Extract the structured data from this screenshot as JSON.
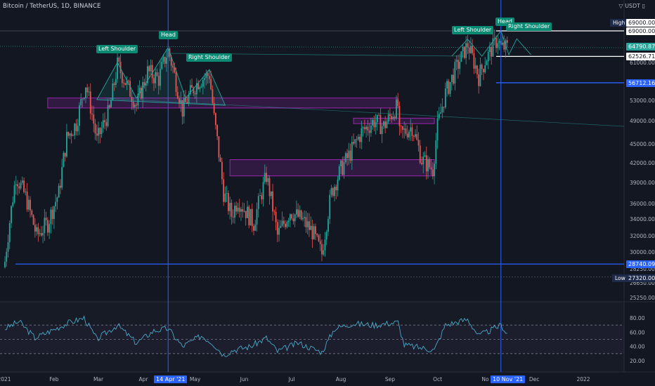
{
  "header": {
    "title": "Bitcoin / TetherUS, 1D, BINANCE",
    "currency": "USDT"
  },
  "price_axis": {
    "ticks": [
      "69000.00",
      "61000.00",
      "53000.00",
      "49000.00",
      "45000.00",
      "42000.00",
      "39000.00",
      "36000.00",
      "34000.00",
      "32000.00",
      "30000.00",
      "28250.00",
      "26650.00",
      "25250.00"
    ],
    "tick_values": [
      69000,
      61000,
      53000,
      49000,
      45000,
      42000,
      39000,
      36000,
      34000,
      32000,
      30000,
      28250,
      26650,
      25250
    ],
    "tags": {
      "high_label": "High",
      "high_value": "69000.00",
      "high_line": "69000.00",
      "last": "64790.87",
      "prev_close": "62526.71",
      "blue_level": "56712.16",
      "support": "28740.09",
      "low_label": "Low",
      "low_value": "27320.00"
    },
    "colors": {
      "last": "#26a69a",
      "blue": "#2962ff",
      "white": "#ffffff",
      "low": "#1e2a4a"
    }
  },
  "rsi_axis": {
    "ticks": [
      "80.00",
      "60.00",
      "40.00",
      "20.00"
    ],
    "tick_values": [
      80,
      60,
      40,
      20
    ]
  },
  "time_axis": {
    "ticks": [
      "2021",
      "Feb",
      "Mar",
      "Apr",
      "May",
      "Jun",
      "Jul",
      "Aug",
      "Sep",
      "Oct",
      "No",
      "Dec",
      "2022"
    ],
    "dates": [
      "2021-01-01",
      "2021-02-01",
      "2021-03-01",
      "2021-04-01",
      "2021-05-01",
      "2021-06-01",
      "2021-07-01",
      "2021-08-01",
      "2021-09-01",
      "2021-10-01",
      "2021-11-01",
      "2021-12-01",
      "2022-01-01"
    ],
    "highlight_1": "14 Apr '21",
    "highlight_2": "10 Nov '21"
  },
  "annotations": {
    "left_shoulder_1": "Left Shoulder",
    "head_1": "Head",
    "right_shoulder_1": "Right Shoulder",
    "left_shoulder_2": "Left Shoulder",
    "head_2": "Head",
    "right_shoulder_2": "Right Shoulder"
  },
  "chart_data": {
    "type": "candlestick",
    "symbol": "Bitcoin / TetherUS",
    "interval": "1D",
    "exchange": "BINANCE",
    "close_path": [
      [
        "2021-01-01",
        29000
      ],
      [
        "2021-01-08",
        40000
      ],
      [
        "2021-01-14",
        37000
      ],
      [
        "2021-01-21",
        32000
      ],
      [
        "2021-01-28",
        33500
      ],
      [
        "2021-02-04",
        37500
      ],
      [
        "2021-02-09",
        46000
      ],
      [
        "2021-02-15",
        48500
      ],
      [
        "2021-02-21",
        56500
      ],
      [
        "2021-02-28",
        45500
      ],
      [
        "2021-03-08",
        51000
      ],
      [
        "2021-03-13",
        60500
      ],
      [
        "2021-03-25",
        52000
      ],
      [
        "2021-04-01",
        59000
      ],
      [
        "2021-04-08",
        57500
      ],
      [
        "2021-04-14",
        64000
      ],
      [
        "2021-04-23",
        51000
      ],
      [
        "2021-04-28",
        54500
      ],
      [
        "2021-05-03",
        57000
      ],
      [
        "2021-05-10",
        58500
      ],
      [
        "2021-05-13",
        49500
      ],
      [
        "2021-05-19",
        37500
      ],
      [
        "2021-05-24",
        34500
      ],
      [
        "2021-05-28",
        36500
      ],
      [
        "2021-06-07",
        33500
      ],
      [
        "2021-06-15",
        40000
      ],
      [
        "2021-06-22",
        32000
      ],
      [
        "2021-06-30",
        35000
      ],
      [
        "2021-07-07",
        34000
      ],
      [
        "2021-07-14",
        32500
      ],
      [
        "2021-07-20",
        29800
      ],
      [
        "2021-07-26",
        37500
      ],
      [
        "2021-08-01",
        41000
      ],
      [
        "2021-08-08",
        44000
      ],
      [
        "2021-08-14",
        47000
      ],
      [
        "2021-08-22",
        49000
      ],
      [
        "2021-08-28",
        48000
      ],
      [
        "2021-09-06",
        52000
      ],
      [
        "2021-09-07",
        46500
      ],
      [
        "2021-09-15",
        48000
      ],
      [
        "2021-09-21",
        42500
      ],
      [
        "2021-09-28",
        41000
      ],
      [
        "2021-10-01",
        48000
      ],
      [
        "2021-10-06",
        54500
      ],
      [
        "2021-10-15",
        61500
      ],
      [
        "2021-10-20",
        65500
      ],
      [
        "2021-10-27",
        58000
      ],
      [
        "2021-10-31",
        61500
      ],
      [
        "2021-11-08",
        67000
      ],
      [
        "2021-11-10",
        64790
      ],
      [
        "2021-11-14",
        64790
      ]
    ],
    "high": 69000.0,
    "low": 27320.0,
    "last": 64790.87,
    "support_level": 28740.09,
    "blue_level": 56712.16,
    "prev_close_level": 62526.71,
    "head_and_shoulders": [
      {
        "left_shoulder": [
          "2021-03-13",
          61000
        ],
        "head": [
          "2021-04-14",
          64800
        ],
        "right_shoulder": [
          "2021-05-10",
          59500
        ]
      },
      {
        "left_shoulder": [
          "2021-10-20",
          66900
        ],
        "head": [
          "2021-11-10",
          69000
        ],
        "right_shoulder": [
          "2021-11-20",
          67000
        ]
      }
    ],
    "zones": [
      {
        "from": "2021-01-28",
        "to": "2021-09-06",
        "low": 51500,
        "high": 53500
      },
      {
        "from": "2021-05-23",
        "to": "2021-09-29",
        "low": 40000,
        "high": 42500
      },
      {
        "from": "2021-08-09",
        "to": "2021-09-29",
        "low": 48500,
        "high": 49500
      }
    ],
    "rsi": {
      "series": [
        [
          "2021-01-01",
          65
        ],
        [
          "2021-01-10",
          75
        ],
        [
          "2021-01-20",
          52
        ],
        [
          "2021-01-30",
          62
        ],
        [
          "2021-02-10",
          73
        ],
        [
          "2021-02-20",
          80
        ],
        [
          "2021-02-28",
          50
        ],
        [
          "2021-03-13",
          70
        ],
        [
          "2021-03-25",
          45
        ],
        [
          "2021-04-05",
          62
        ],
        [
          "2021-04-14",
          65
        ],
        [
          "2021-04-23",
          40
        ],
        [
          "2021-05-05",
          55
        ],
        [
          "2021-05-12",
          45
        ],
        [
          "2021-05-19",
          28
        ],
        [
          "2021-05-25",
          35
        ],
        [
          "2021-06-05",
          40
        ],
        [
          "2021-06-15",
          52
        ],
        [
          "2021-06-22",
          33
        ],
        [
          "2021-07-05",
          45
        ],
        [
          "2021-07-20",
          32
        ],
        [
          "2021-07-28",
          65
        ],
        [
          "2021-08-08",
          72
        ],
        [
          "2021-08-22",
          70
        ],
        [
          "2021-09-06",
          74
        ],
        [
          "2021-09-10",
          42
        ],
        [
          "2021-09-21",
          38
        ],
        [
          "2021-09-29",
          35
        ],
        [
          "2021-10-06",
          70
        ],
        [
          "2021-10-20",
          78
        ],
        [
          "2021-10-27",
          55
        ],
        [
          "2021-11-03",
          62
        ],
        [
          "2021-11-10",
          70
        ],
        [
          "2021-11-14",
          58
        ]
      ],
      "levels": [
        70,
        50,
        30
      ]
    }
  }
}
